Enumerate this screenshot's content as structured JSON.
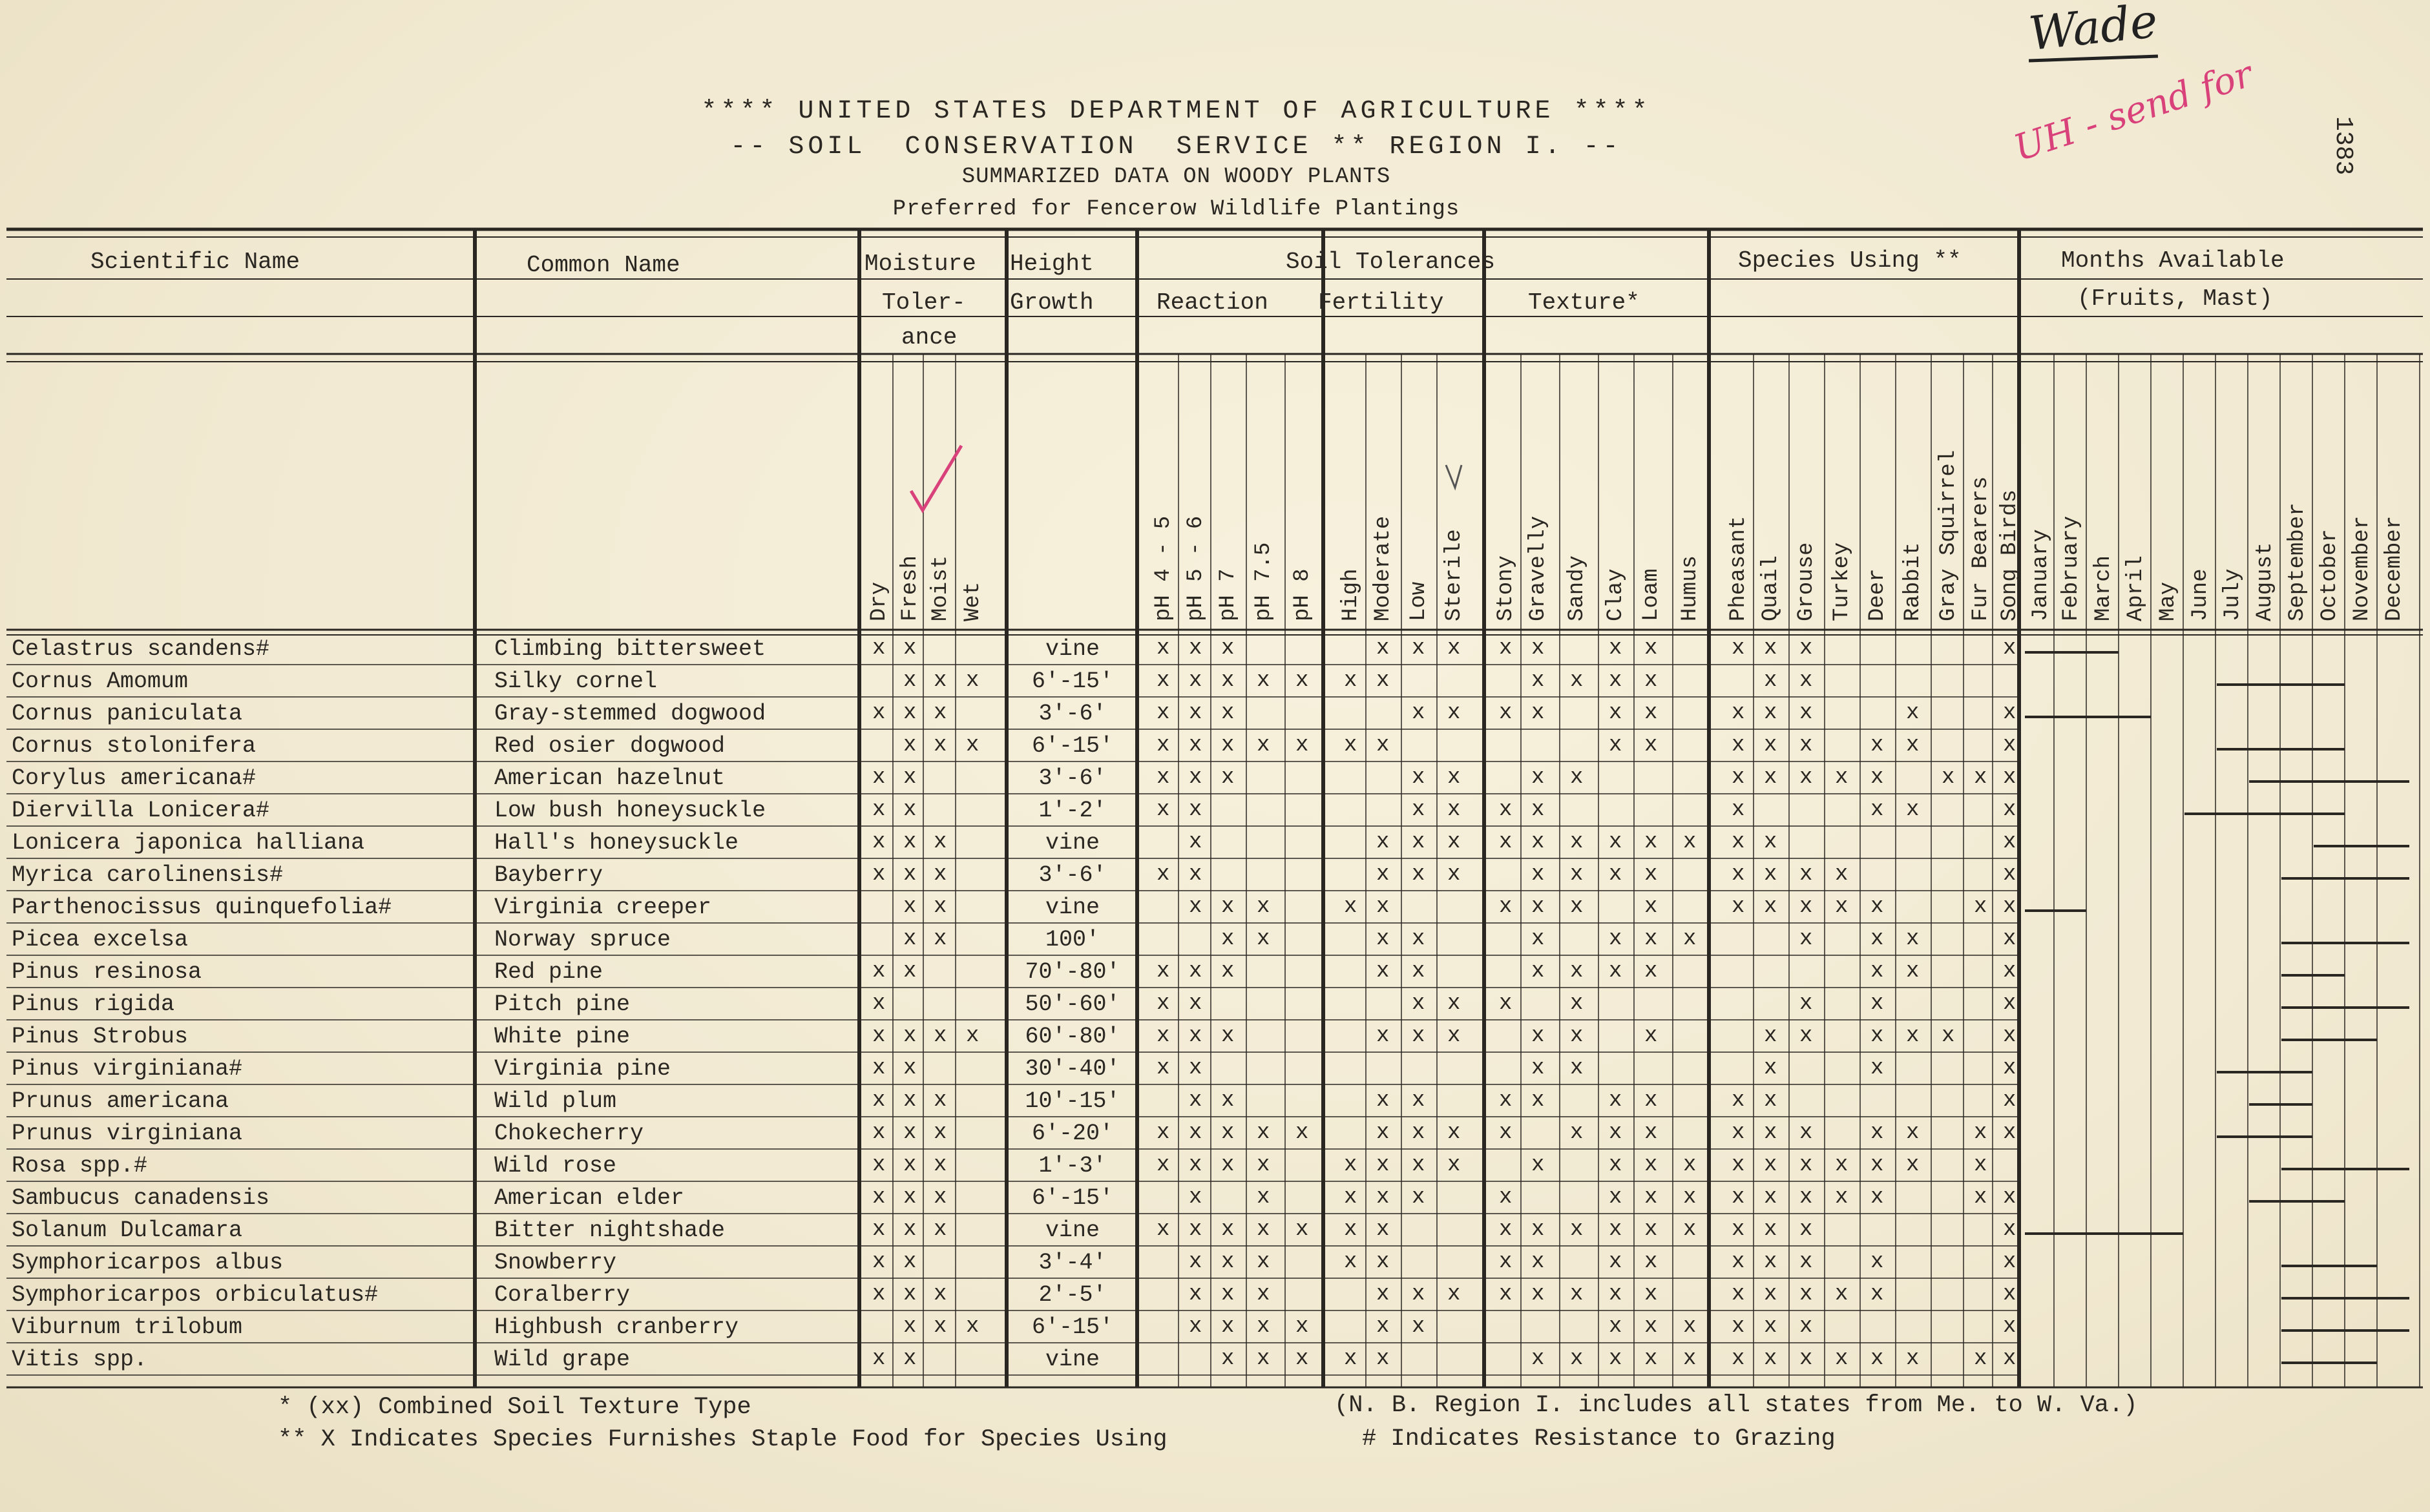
{
  "header": {
    "line1": "**** UNITED STATES DEPARTMENT OF AGRICULTURE ****",
    "line2": "-- SOIL  CONSERVATION  SERVICE ** REGION I. --",
    "line3": "SUMMARIZED DATA ON WOODY PLANTS",
    "line4": "Preferred for Fencerow Wildlife Plantings"
  },
  "annotations": {
    "wade": "Wade",
    "red_note": "UH - send for",
    "doc_number": "1383"
  },
  "columns": {
    "scientific": "Scientific Name",
    "common": "Common Name",
    "moisture": "Moisture",
    "moisture_sub": "Toler-",
    "moisture_sub2": "ance",
    "height": "Height",
    "height_sub": "Growth",
    "soil": "Soil Tolerances",
    "reaction": "Reaction",
    "fertility": "Fertility",
    "texture": "Texture*",
    "species": "Species Using **",
    "months": "Months Available",
    "months_sub": "(Fruits, Mast)"
  },
  "sub_columns": [
    "Dry",
    "Fresh",
    "Moist",
    "Wet",
    "pH 4 - 5",
    "pH 5 - 6",
    "pH 7",
    "pH 7.5",
    "pH 8",
    "High",
    "Moderate",
    "Low",
    "Sterile",
    "Stony",
    "Gravelly",
    "Sandy",
    "Clay",
    "Loam",
    "Humus",
    "Pheasant",
    "Quail",
    "Grouse",
    "Turkey",
    "Deer",
    "Rabbit",
    "Gray Squirrel",
    "Fur Bearers",
    "Song Birds",
    "January",
    "February",
    "March",
    "April",
    "May",
    "June",
    "July",
    "August",
    "September",
    "October",
    "November",
    "December"
  ],
  "rows": [
    {
      "sci": "Celastrus scandens#",
      "common": "Climbing bittersweet",
      "height": "vine",
      "marks": [
        0,
        1,
        4,
        5,
        6,
        10,
        11,
        12,
        13,
        14,
        16,
        17,
        19,
        20,
        21,
        27
      ]
    },
    {
      "sci": "Cornus Amomum",
      "common": "Silky cornel",
      "height": "6'-15'",
      "marks": [
        1,
        2,
        3,
        4,
        5,
        6,
        7,
        8,
        9,
        10,
        14,
        15,
        16,
        17,
        20,
        21
      ]
    },
    {
      "sci": "Cornus paniculata",
      "common": "Gray-stemmed dogwood",
      "height": "3'-6'",
      "marks": [
        0,
        1,
        2,
        4,
        5,
        6,
        11,
        12,
        13,
        14,
        16,
        17,
        19,
        20,
        21,
        24,
        27
      ]
    },
    {
      "sci": "Cornus stolonifera",
      "common": "Red osier dogwood",
      "height": "6'-15'",
      "marks": [
        1,
        2,
        3,
        4,
        5,
        6,
        7,
        8,
        9,
        10,
        16,
        17,
        19,
        20,
        21,
        23,
        24,
        27
      ]
    },
    {
      "sci": "Corylus americana#",
      "common": "American hazelnut",
      "height": "3'-6'",
      "marks": [
        0,
        1,
        4,
        5,
        6,
        11,
        12,
        14,
        15,
        19,
        20,
        21,
        22,
        23,
        25,
        26,
        27
      ]
    },
    {
      "sci": "Diervilla Lonicera#",
      "common": "Low bush honeysuckle",
      "height": "1'-2'",
      "marks": [
        0,
        1,
        4,
        5,
        11,
        12,
        13,
        14,
        19,
        23,
        24,
        27
      ]
    },
    {
      "sci": "Lonicera japonica halliana",
      "common": "Hall's honeysuckle",
      "height": "vine",
      "marks": [
        0,
        1,
        2,
        5,
        10,
        11,
        12,
        13,
        14,
        15,
        16,
        17,
        18,
        19,
        20,
        27
      ]
    },
    {
      "sci": "Myrica carolinensis#",
      "common": "Bayberry",
      "height": "3'-6'",
      "marks": [
        0,
        1,
        2,
        4,
        5,
        10,
        11,
        12,
        14,
        15,
        16,
        17,
        19,
        20,
        21,
        22,
        27
      ]
    },
    {
      "sci": "Parthenocissus quinquefolia#",
      "common": "Virginia creeper",
      "height": "vine",
      "marks": [
        1,
        2,
        5,
        6,
        7,
        9,
        10,
        13,
        14,
        15,
        17,
        19,
        20,
        21,
        22,
        23,
        26,
        27
      ]
    },
    {
      "sci": "Picea excelsa",
      "common": "Norway spruce",
      "height": "100'",
      "marks": [
        1,
        2,
        6,
        7,
        10,
        11,
        14,
        16,
        17,
        18,
        21,
        23,
        24,
        27
      ]
    },
    {
      "sci": "Pinus resinosa",
      "common": "Red pine",
      "height": "70'-80'",
      "marks": [
        0,
        1,
        4,
        5,
        6,
        10,
        11,
        14,
        15,
        16,
        17,
        23,
        24,
        27
      ]
    },
    {
      "sci": "Pinus rigida",
      "common": "Pitch pine",
      "height": "50'-60'",
      "marks": [
        0,
        4,
        5,
        11,
        12,
        13,
        15,
        21,
        23,
        27
      ]
    },
    {
      "sci": "Pinus Strobus",
      "common": "White pine",
      "height": "60'-80'",
      "marks": [
        0,
        1,
        2,
        3,
        4,
        5,
        6,
        10,
        11,
        12,
        14,
        15,
        17,
        20,
        21,
        23,
        24,
        25,
        27
      ]
    },
    {
      "sci": "Pinus virginiana#",
      "common": "Virginia pine",
      "height": "30'-40'",
      "marks": [
        0,
        1,
        4,
        5,
        14,
        15,
        20,
        23,
        27
      ]
    },
    {
      "sci": "Prunus americana",
      "common": "Wild plum",
      "height": "10'-15'",
      "marks": [
        0,
        1,
        2,
        5,
        6,
        10,
        11,
        13,
        14,
        16,
        17,
        19,
        20,
        27
      ]
    },
    {
      "sci": "Prunus virginiana",
      "common": "Chokecherry",
      "height": "6'-20'",
      "marks": [
        0,
        1,
        2,
        4,
        5,
        6,
        7,
        8,
        10,
        11,
        12,
        13,
        15,
        16,
        17,
        19,
        20,
        21,
        23,
        24,
        26,
        27
      ]
    },
    {
      "sci": "Rosa spp.#",
      "common": "Wild rose",
      "height": "1'-3'",
      "marks": [
        0,
        1,
        2,
        4,
        5,
        6,
        7,
        9,
        10,
        11,
        12,
        14,
        16,
        17,
        18,
        19,
        20,
        21,
        22,
        23,
        24,
        26
      ]
    },
    {
      "sci": "Sambucus canadensis",
      "common": "American elder",
      "height": "6'-15'",
      "marks": [
        0,
        1,
        2,
        5,
        7,
        9,
        10,
        11,
        13,
        16,
        17,
        18,
        19,
        20,
        21,
        22,
        23,
        26,
        27
      ]
    },
    {
      "sci": "Solanum Dulcamara",
      "common": "Bitter nightshade",
      "height": "vine",
      "marks": [
        0,
        1,
        2,
        4,
        5,
        6,
        7,
        8,
        9,
        10,
        13,
        14,
        15,
        16,
        17,
        18,
        19,
        20,
        21,
        27
      ]
    },
    {
      "sci": "Symphoricarpos albus",
      "common": "Snowberry",
      "height": "3'-4'",
      "marks": [
        0,
        1,
        5,
        6,
        7,
        9,
        10,
        13,
        14,
        16,
        17,
        19,
        20,
        21,
        23,
        27
      ]
    },
    {
      "sci": "Symphoricarpos orbiculatus#",
      "common": "Coralberry",
      "height": "2'-5'",
      "marks": [
        0,
        1,
        2,
        5,
        6,
        7,
        10,
        11,
        12,
        13,
        14,
        15,
        16,
        17,
        19,
        20,
        21,
        22,
        23,
        27
      ]
    },
    {
      "sci": "Viburnum trilobum",
      "common": "Highbush cranberry",
      "height": "6'-15'",
      "marks": [
        1,
        2,
        3,
        5,
        6,
        7,
        8,
        10,
        11,
        16,
        17,
        18,
        19,
        20,
        21,
        27
      ]
    },
    {
      "sci": "Vitis spp.",
      "common": "Wild grape",
      "height": "vine",
      "marks": [
        0,
        1,
        6,
        7,
        8,
        9,
        10,
        14,
        15,
        16,
        17,
        18,
        19,
        20,
        21,
        22,
        23,
        24,
        26,
        27
      ]
    }
  ],
  "footer": {
    "f1": "* (xx) Combined Soil Texture Type",
    "f2": "** X   Indicates Species Furnishes Staple Food for Species Using",
    "f3": "(N. B. Region I. includes all states from Me. to W. Va.)",
    "f4": "#  Indicates Resistance to Grazing"
  },
  "colors": {
    "paper": "#f3ecd6",
    "ink": "#2a2622",
    "red_ink": "#d9417a"
  }
}
